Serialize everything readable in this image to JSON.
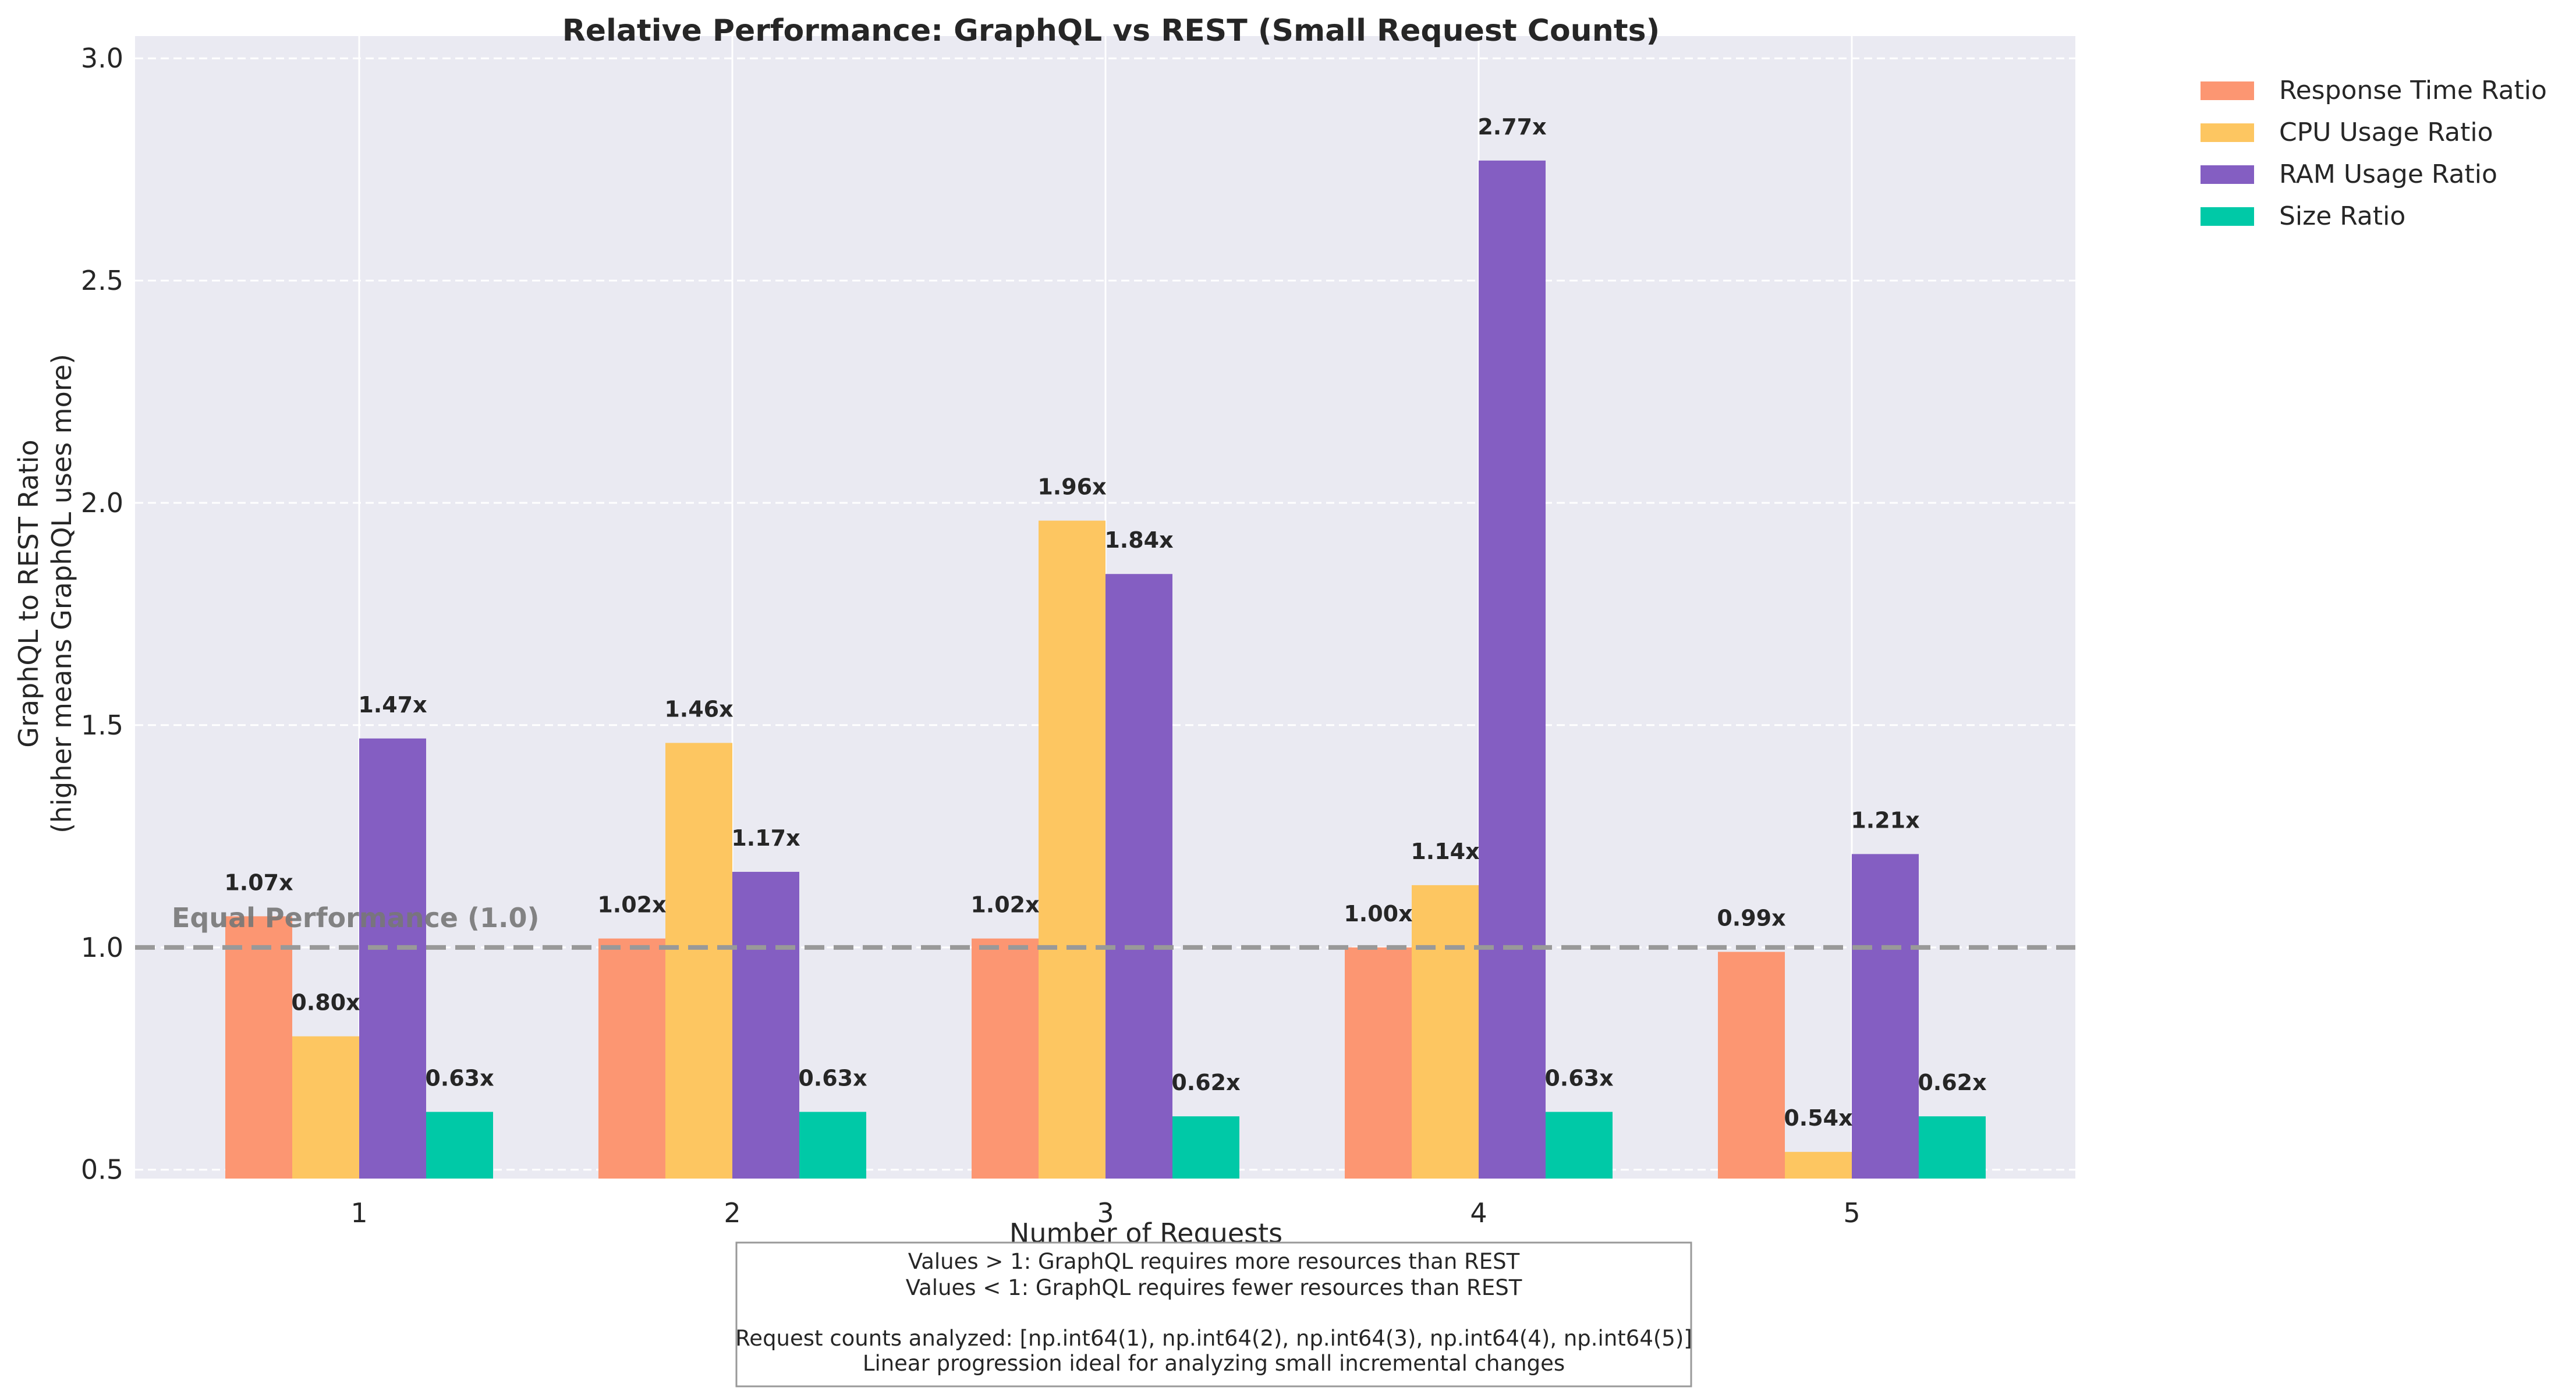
{
  "chart_data": {
    "type": "bar",
    "title": "Relative Performance: GraphQL vs REST (Small Request Counts)",
    "xlabel": "Number of Requests",
    "ylabel_lines": [
      "GraphQL to REST Ratio",
      "(higher means GraphQL uses more)"
    ],
    "categories": [
      "1",
      "2",
      "3",
      "4",
      "5"
    ],
    "ylim": [
      0.48,
      3.05
    ],
    "yticks": [
      0.5,
      1.0,
      1.5,
      2.0,
      2.5,
      3.0
    ],
    "ytick_labels": [
      "0.5",
      "1.0",
      "1.5",
      "2.0",
      "2.5",
      "3.0"
    ],
    "grid": true,
    "legend_position": "outside-top-right",
    "series": [
      {
        "name": "Response Time Ratio",
        "color": "#fc9672",
        "values": [
          1.07,
          1.02,
          1.02,
          1.0,
          0.99
        ],
        "labels": [
          "1.07x",
          "1.02x",
          "1.02x",
          "1.00x",
          "0.99x"
        ]
      },
      {
        "name": "CPU Usage Ratio",
        "color": "#fdc661",
        "values": [
          0.8,
          1.46,
          1.96,
          1.14,
          0.54
        ],
        "labels": [
          "0.80x",
          "1.46x",
          "1.96x",
          "1.14x",
          "0.54x"
        ]
      },
      {
        "name": "RAM Usage Ratio",
        "color": "#845ec2",
        "values": [
          1.47,
          1.17,
          1.84,
          2.77,
          1.21
        ],
        "labels": [
          "1.47x",
          "1.17x",
          "1.84x",
          "2.77x",
          "1.21x"
        ]
      },
      {
        "name": "Size Ratio",
        "color": "#00c9a7",
        "values": [
          0.63,
          0.63,
          0.62,
          0.63,
          0.62
        ],
        "labels": [
          "0.63x",
          "0.63x",
          "0.62x",
          "0.63x",
          "0.62x"
        ]
      }
    ],
    "reference_line": {
      "value": 1.0,
      "label": "Equal Performance (1.0)",
      "color": "#999999"
    },
    "note_lines": [
      "Values > 1: GraphQL requires more resources than REST",
      "Values < 1: GraphQL requires fewer resources than REST",
      "",
      "Request counts analyzed: [np.int64(1), np.int64(2), np.int64(3), np.int64(4), np.int64(5)]",
      "Linear progression ideal for analyzing small incremental changes"
    ],
    "colors": {
      "plot_background": "#eaeaf2",
      "grid": "#ffffff",
      "text": "#262626"
    }
  }
}
